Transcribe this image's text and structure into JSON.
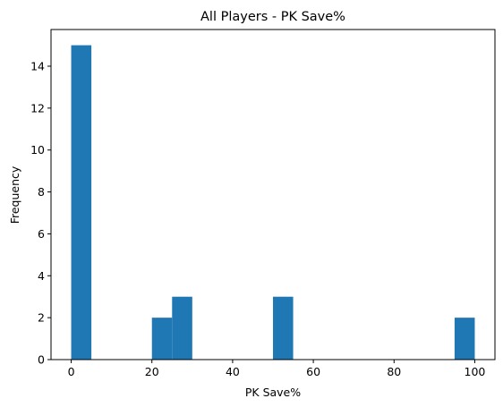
{
  "chart_data": {
    "type": "bar",
    "title": "All Players - PK Save%",
    "xlabel": "PK Save%",
    "ylabel": "Frequency",
    "bar_color": "#1f77b4",
    "xlim": [
      -5,
      105
    ],
    "ylim": [
      0,
      15.75
    ],
    "xticks": [
      0,
      20,
      40,
      60,
      80,
      100
    ],
    "yticks": [
      0,
      2,
      4,
      6,
      8,
      10,
      12,
      14
    ],
    "bins": [
      {
        "x0": 0,
        "x1": 5,
        "count": 15
      },
      {
        "x0": 20,
        "x1": 25,
        "count": 2
      },
      {
        "x0": 25,
        "x1": 30,
        "count": 3
      },
      {
        "x0": 50,
        "x1": 55,
        "count": 3
      },
      {
        "x0": 95,
        "x1": 100,
        "count": 2
      }
    ],
    "grid": false,
    "legend": "none"
  }
}
